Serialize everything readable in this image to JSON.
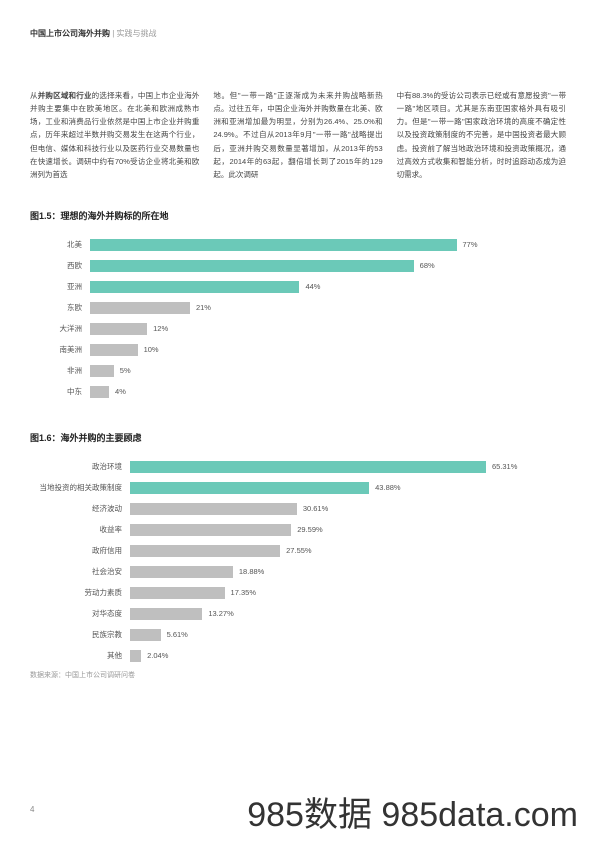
{
  "header": {
    "title_bold": "中国上市公司海外并购",
    "title_light": " | 实践与挑战"
  },
  "body": {
    "col1": "从并购区域和行业的选择来看，中国上市企业海外并购主要集中在欧美地区。在北美和欧洲成熟市场，工业和消费品行业依然是中国上市企业并购重点，历年来超过半数并购交易发生在这两个行业，但电信、媒体和科技行业以及医药行业交易数量也在快速增长。调研中约有70%受访企业将北美和欧洲列为首选",
    "col2": "地。但\"一带一路\"正逐渐成为未来并购战略新热点。过往五年，中国企业海外并购数量在北美、欧洲和亚洲增加最为明显，分别为26.4%、25.0%和24.9%。不过自从2013年9月\"一带一路\"战略提出后，亚洲并购交易数量显著增加，从2013年的53起，2014年的63起，翻倍增长到了2015年的129起。此次调研",
    "col3": "中有88.3%的受访公司表示已经或有意愿投资\"一带一路\"地区项目。尤其是东南亚国家格外具有吸引力。但是\"一带一路\"国家政治环境的高度不确定性以及投资政策制度的不完善，是中国投资者最大顾虑。投资前了解当地政治环境和投资政策概况，通过高效方式收集和智能分析，时时追踪动态成为迫切需求。",
    "bold_run": "并购区域和行业"
  },
  "chart1": {
    "title": "图1.5：理想的海外并购标的所在地",
    "max": 100,
    "highlight_color": "#6bc9b8",
    "normal_color": "#bfbfbf",
    "rows": [
      {
        "label": "北美",
        "value": 77,
        "text": "77%",
        "hl": true
      },
      {
        "label": "西欧",
        "value": 68,
        "text": "68%",
        "hl": true
      },
      {
        "label": "亚洲",
        "value": 44,
        "text": "44%",
        "hl": true
      },
      {
        "label": "东欧",
        "value": 21,
        "text": "21%",
        "hl": false
      },
      {
        "label": "大洋洲",
        "value": 12,
        "text": "12%",
        "hl": false
      },
      {
        "label": "南美洲",
        "value": 10,
        "text": "10%",
        "hl": false
      },
      {
        "label": "非洲",
        "value": 5,
        "text": "5%",
        "hl": false
      },
      {
        "label": "中东",
        "value": 4,
        "text": "4%",
        "hl": false
      }
    ]
  },
  "chart2": {
    "title": "图1.6：海外并购的主要顾虑",
    "max": 80,
    "highlight_color": "#6bc9b8",
    "normal_color": "#bfbfbf",
    "rows": [
      {
        "label": "政治环境",
        "value": 65.31,
        "text": "65.31%",
        "hl": true
      },
      {
        "label": "当地投资的相关政策制度",
        "value": 43.88,
        "text": "43.88%",
        "hl": true
      },
      {
        "label": "经济波动",
        "value": 30.61,
        "text": "30.61%",
        "hl": false
      },
      {
        "label": "收益率",
        "value": 29.59,
        "text": "29.59%",
        "hl": false
      },
      {
        "label": "政府信用",
        "value": 27.55,
        "text": "27.55%",
        "hl": false
      },
      {
        "label": "社会治安",
        "value": 18.88,
        "text": "18.88%",
        "hl": false
      },
      {
        "label": "劳动力素质",
        "value": 17.35,
        "text": "17.35%",
        "hl": false
      },
      {
        "label": "对华态度",
        "value": 13.27,
        "text": "13.27%",
        "hl": false
      },
      {
        "label": "民族宗教",
        "value": 5.61,
        "text": "5.61%",
        "hl": false
      },
      {
        "label": "其他",
        "value": 2.04,
        "text": "2.04%",
        "hl": false
      }
    ]
  },
  "source": "数据来源：中国上市公司调研问卷",
  "page_number": "4",
  "watermark": "985数据 985data.com"
}
